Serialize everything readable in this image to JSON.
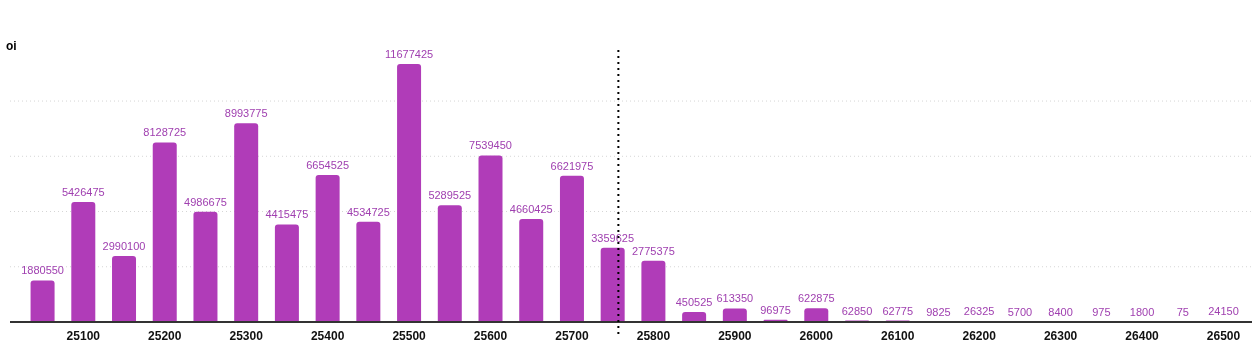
{
  "chart_data": {
    "type": "bar",
    "ylabel": "oi",
    "x": [
      25050,
      25100,
      25150,
      25200,
      25250,
      25300,
      25350,
      25400,
      25450,
      25500,
      25550,
      25600,
      25650,
      25700,
      25750,
      25800,
      25850,
      25900,
      25950,
      26000,
      26050,
      26100,
      26150,
      26200,
      26250,
      26300,
      26350,
      26400,
      26450,
      26500
    ],
    "values": [
      1880550,
      5426475,
      2990100,
      8128725,
      4986675,
      8993775,
      4415475,
      6654525,
      4534725,
      11677425,
      5289525,
      7539450,
      4660425,
      6621975,
      3359625,
      2775375,
      450525,
      613350,
      96975,
      622875,
      62850,
      62775,
      9825,
      26325,
      5700,
      8400,
      975,
      1800,
      75,
      24150
    ],
    "color": "#b03cb8",
    "data_labels": true,
    "xlim": [
      25010,
      26535
    ],
    "xticks": [
      25100,
      25200,
      25300,
      25400,
      25500,
      25600,
      25700,
      25800,
      25900,
      26000,
      26100,
      26200,
      26300,
      26400,
      26500
    ],
    "yticks": [
      {
        "value": 0,
        "label": null
      },
      {
        "value": 2500000,
        "label": null
      },
      {
        "value": 5000000,
        "label": null
      },
      {
        "value": 7500000,
        "label": null
      },
      {
        "value": 10000000,
        "label": null
      }
    ],
    "tick_labels": "x",
    "grid": "y",
    "ref_lines": [
      {
        "axis": "x",
        "value": 25757,
        "line_style": "dotted",
        "color": "#000000"
      }
    ]
  }
}
